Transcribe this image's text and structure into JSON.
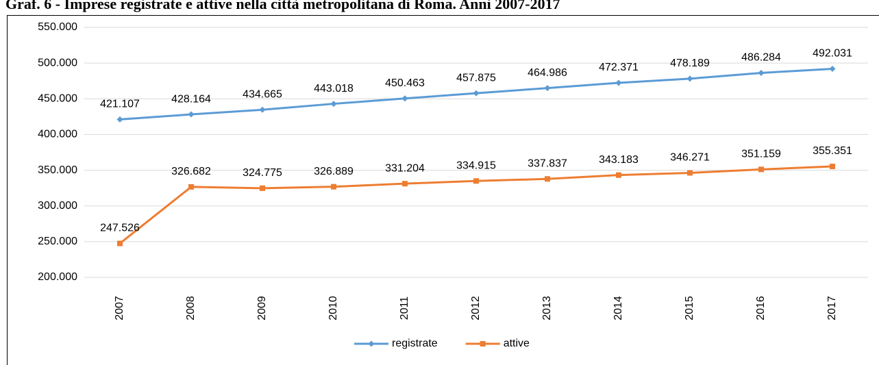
{
  "chart_data": {
    "type": "line",
    "title": "Graf. 6 - Imprese registrate e attive nella città metropolitana di Roma. Anni 2007-2017",
    "categories": [
      "2007",
      "2008",
      "2009",
      "2010",
      "2011",
      "2012",
      "2013",
      "2014",
      "2015",
      "2016",
      "2017"
    ],
    "series": [
      {
        "name": "registrate",
        "color": "#5b9bd5",
        "marker": "diamond",
        "values": [
          421107,
          428164,
          434665,
          443018,
          450463,
          457875,
          464986,
          472371,
          478189,
          486284,
          492031
        ],
        "value_labels": [
          "421.107",
          "428.164",
          "434.665",
          "443.018",
          "450.463",
          "457.875",
          "464.986",
          "472.371",
          "478.189",
          "486.284",
          "492.031"
        ]
      },
      {
        "name": "attive",
        "color": "#ed7d31",
        "marker": "square",
        "values": [
          247526,
          326682,
          324775,
          326889,
          331204,
          334915,
          337837,
          343183,
          346271,
          351159,
          355351
        ],
        "value_labels": [
          "247.526",
          "326.682",
          "324.775",
          "326.889",
          "331.204",
          "334.915",
          "337.837",
          "343.183",
          "346.271",
          "351.159",
          "355.351"
        ]
      }
    ],
    "ylim": [
      200000,
      550000
    ],
    "yticks": [
      {
        "value": 200000,
        "label": "200.000"
      },
      {
        "value": 250000,
        "label": "250.000"
      },
      {
        "value": 300000,
        "label": "300.000"
      },
      {
        "value": 350000,
        "label": "350.000"
      },
      {
        "value": 400000,
        "label": "400.000"
      },
      {
        "value": 450000,
        "label": "450.000"
      },
      {
        "value": 500000,
        "label": "500.000"
      },
      {
        "value": 550000,
        "label": "550.000"
      }
    ],
    "grid": true,
    "legend": "bottom"
  }
}
